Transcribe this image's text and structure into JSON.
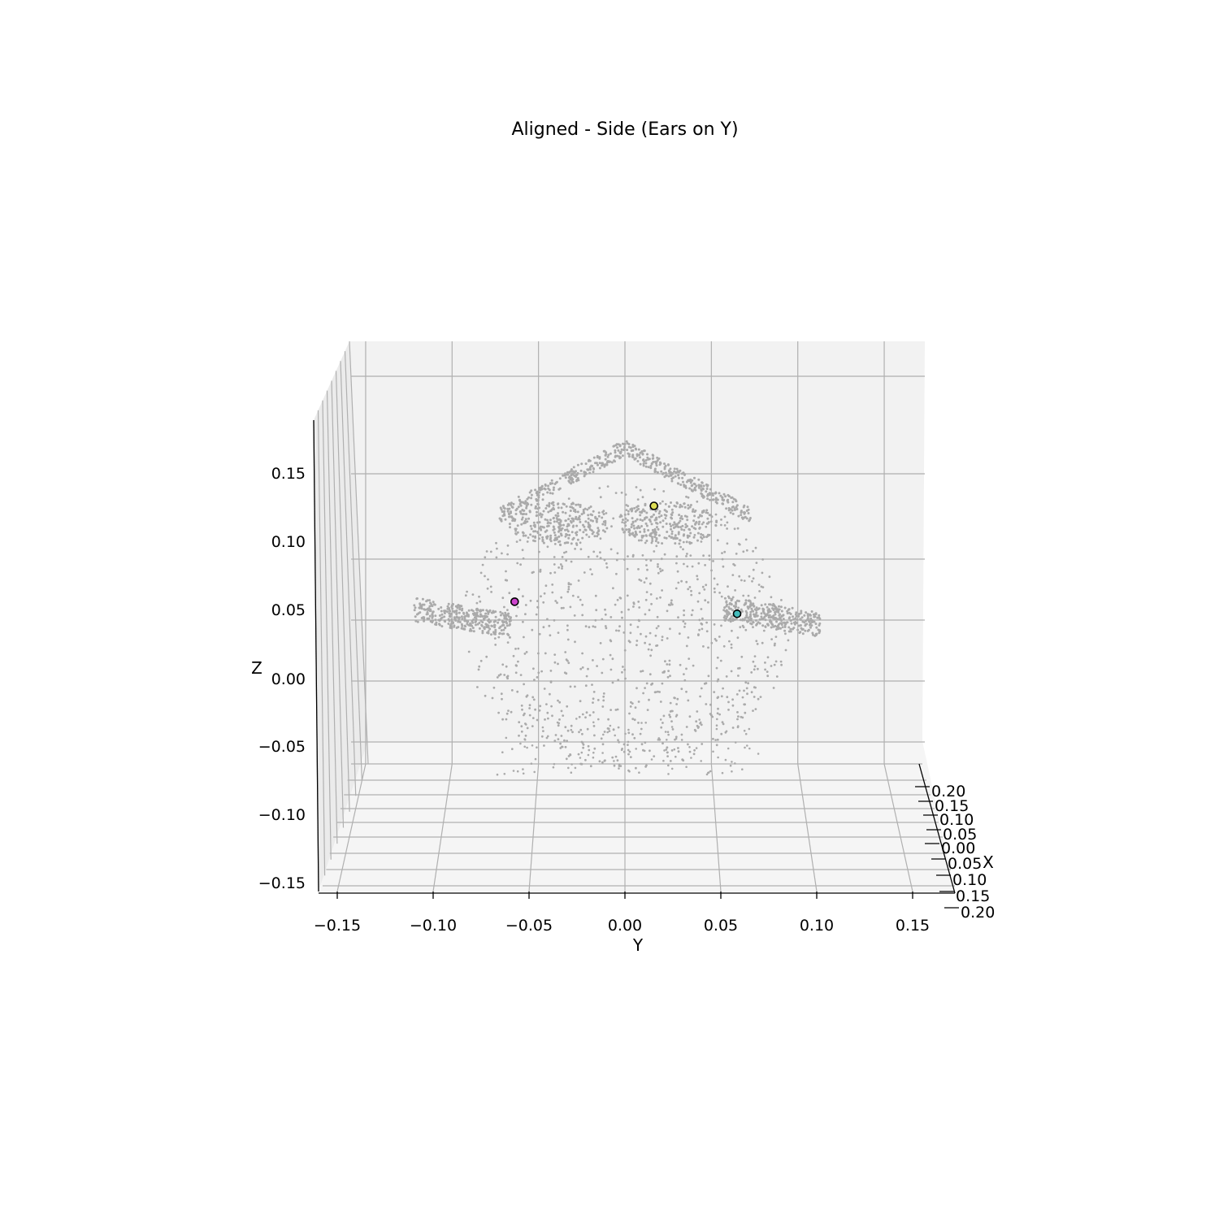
{
  "chart_data": {
    "type": "scatter",
    "projection": "3d",
    "title": "Aligned - Side (Ears on Y)",
    "xlabel": "X",
    "ylabel": "Y",
    "zlabel": "Z",
    "xlim": [
      -0.2,
      0.2
    ],
    "ylim": [
      -0.16,
      0.16
    ],
    "zlim": [
      -0.16,
      0.18
    ],
    "grid": true,
    "x_ticks": [
      "−0.20",
      "−0.15",
      "−0.10",
      "−0.05",
      "0.00",
      "0.05",
      "0.10",
      "0.15",
      "0.20"
    ],
    "x_tick_labels_visible": [
      "0.20",
      "0.15",
      "0.10",
      "0.05",
      "0.00",
      "0.05",
      "0.10",
      "0.15",
      "0.20"
    ],
    "y_ticks": [
      "−0.15",
      "−0.10",
      "−0.05",
      "0.00",
      "0.05",
      "0.10",
      "0.15"
    ],
    "z_ticks": [
      "0.15",
      "0.10",
      "0.05",
      "0.00",
      "−0.05",
      "−0.10",
      "−0.15"
    ],
    "series": [
      {
        "color": "#aaaaaa",
        "marker": "small-dot",
        "description_points": [
          {
            "y": -0.006,
            "z": 0.165
          },
          {
            "y": 0.0,
            "z": 0.168
          },
          {
            "y": 0.006,
            "z": 0.163
          },
          {
            "y": -0.012,
            "z": 0.152
          },
          {
            "y": 0.012,
            "z": 0.152
          },
          {
            "y": -0.024,
            "z": 0.143
          },
          {
            "y": 0.024,
            "z": 0.143
          },
          {
            "y": -0.04,
            "z": 0.138
          },
          {
            "y": 0.04,
            "z": 0.135
          },
          {
            "y": -0.055,
            "z": 0.125
          },
          {
            "y": 0.055,
            "z": 0.124
          },
          {
            "y": -0.065,
            "z": 0.115
          },
          {
            "y": 0.065,
            "z": 0.11
          },
          {
            "y": -0.072,
            "z": 0.09
          },
          {
            "y": 0.068,
            "z": 0.092
          },
          {
            "y": -0.08,
            "z": 0.06
          },
          {
            "y": 0.075,
            "z": 0.07
          },
          {
            "y": -0.09,
            "z": 0.04
          },
          {
            "y": -0.1,
            "z": 0.035
          },
          {
            "y": 0.085,
            "z": 0.045
          },
          {
            "y": 0.095,
            "z": 0.04
          },
          {
            "y": -0.08,
            "z": 0.02
          },
          {
            "y": 0.08,
            "z": 0.02
          },
          {
            "y": -0.07,
            "z": -0.01
          },
          {
            "y": 0.07,
            "z": -0.01
          },
          {
            "y": -0.055,
            "z": -0.035
          },
          {
            "y": 0.06,
            "z": -0.035
          },
          {
            "y": -0.04,
            "z": -0.055
          },
          {
            "y": 0.04,
            "z": -0.055
          },
          {
            "y": -0.02,
            "z": -0.07
          },
          {
            "y": 0.0,
            "z": -0.075
          },
          {
            "y": 0.02,
            "z": -0.07
          },
          {
            "y": -0.03,
            "z": 0.05
          },
          {
            "y": 0.03,
            "z": 0.05
          },
          {
            "y": 0.0,
            "z": 0.02
          },
          {
            "y": -0.02,
            "z": 0.08
          },
          {
            "y": 0.02,
            "z": 0.08
          },
          {
            "y": 0.0,
            "z": 0.1
          }
        ]
      },
      {
        "name_hint": "ear-left",
        "color": "#cc44cc",
        "points": [
          {
            "y": -0.057,
            "z": 0.054
          }
        ]
      },
      {
        "name_hint": "ear-right",
        "color": "#44bbbb",
        "points": [
          {
            "y": 0.058,
            "z": 0.045
          }
        ]
      },
      {
        "name_hint": "nose",
        "color": "#dddd55",
        "points": [
          {
            "y": 0.015,
            "z": 0.125
          }
        ]
      }
    ]
  }
}
